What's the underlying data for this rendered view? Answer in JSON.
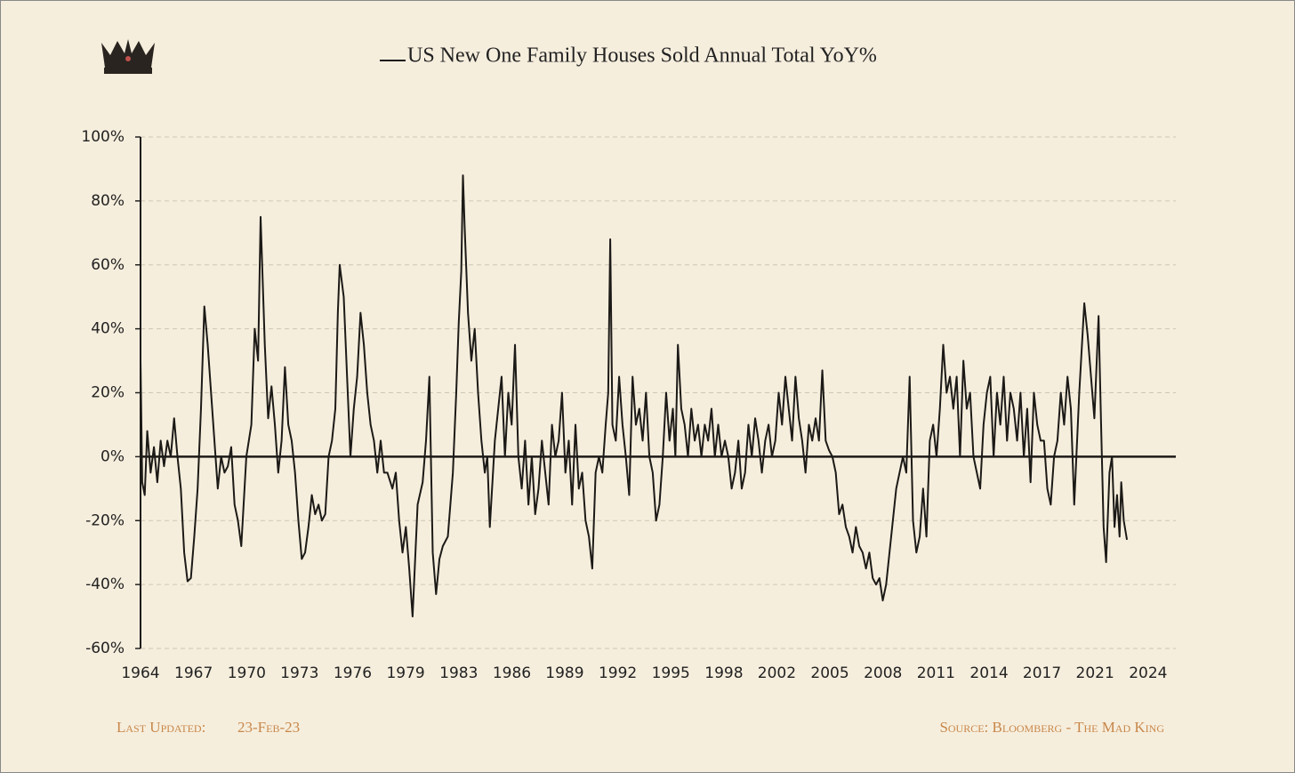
{
  "chart_data": {
    "type": "line",
    "footer_left_label": "Last Updated:",
    "footer_left_value": "23-Feb-23",
    "footer_right": "Source: Bloomberg - The Mad King",
    "xlim": [
      1964,
      2025.65
    ],
    "ylim": [
      -60,
      100
    ],
    "xticks": [
      {
        "value": 1964,
        "label": "1964"
      },
      {
        "value": 1967.16,
        "label": "1967"
      },
      {
        "value": 1970.32,
        "label": "1970"
      },
      {
        "value": 1973.47,
        "label": "1973"
      },
      {
        "value": 1976.63,
        "label": "1976"
      },
      {
        "value": 1979.79,
        "label": "1979"
      },
      {
        "value": 1982.95,
        "label": "1983"
      },
      {
        "value": 1986.11,
        "label": "1986"
      },
      {
        "value": 1989.26,
        "label": "1989"
      },
      {
        "value": 1992.42,
        "label": "1992"
      },
      {
        "value": 1995.58,
        "label": "1995"
      },
      {
        "value": 1998.74,
        "label": "1998"
      },
      {
        "value": 2001.89,
        "label": "2002"
      },
      {
        "value": 2005.05,
        "label": "2005"
      },
      {
        "value": 2008.21,
        "label": "2008"
      },
      {
        "value": 2011.37,
        "label": "2011"
      },
      {
        "value": 2014.53,
        "label": "2014"
      },
      {
        "value": 2017.68,
        "label": "2017"
      },
      {
        "value": 2020.84,
        "label": "2021"
      },
      {
        "value": 2024,
        "label": "2024"
      }
    ],
    "yticks": [
      {
        "value": -60,
        "label": "-60%"
      },
      {
        "value": -40,
        "label": "-40%"
      },
      {
        "value": -20,
        "label": "-20%"
      },
      {
        "value": 0,
        "label": "0%"
      },
      {
        "value": 20,
        "label": "20%"
      },
      {
        "value": 40,
        "label": "40%"
      },
      {
        "value": 60,
        "label": "60%"
      },
      {
        "value": 80,
        "label": "80%"
      },
      {
        "value": 100,
        "label": "100%"
      }
    ],
    "grid": true,
    "x": [
      1964.0,
      1964.1,
      1964.25,
      1964.4,
      1964.6,
      1964.8,
      1965.0,
      1965.2,
      1965.4,
      1965.6,
      1965.8,
      1966.0,
      1966.2,
      1966.4,
      1966.6,
      1966.8,
      1967.0,
      1967.2,
      1967.4,
      1967.6,
      1967.8,
      1968.0,
      1968.2,
      1968.4,
      1968.6,
      1968.8,
      1969.0,
      1969.2,
      1969.4,
      1969.6,
      1969.8,
      1970.0,
      1970.3,
      1970.6,
      1970.8,
      1971.0,
      1971.15,
      1971.4,
      1971.6,
      1971.8,
      1972.0,
      1972.2,
      1972.4,
      1972.6,
      1972.8,
      1973.0,
      1973.2,
      1973.4,
      1973.6,
      1973.8,
      1974.0,
      1974.2,
      1974.4,
      1974.6,
      1974.8,
      1975.0,
      1975.2,
      1975.4,
      1975.6,
      1975.75,
      1975.86,
      1976.1,
      1976.3,
      1976.5,
      1976.7,
      1976.9,
      1977.1,
      1977.3,
      1977.5,
      1977.7,
      1977.9,
      1978.1,
      1978.3,
      1978.5,
      1978.7,
      1979.0,
      1979.2,
      1979.4,
      1979.6,
      1979.8,
      1980.0,
      1980.2,
      1980.5,
      1980.8,
      1981.0,
      1981.2,
      1981.4,
      1981.6,
      1981.8,
      1982.0,
      1982.3,
      1982.6,
      1982.8,
      1982.95,
      1983.1,
      1983.2,
      1983.3,
      1983.5,
      1983.7,
      1983.9,
      1984.1,
      1984.3,
      1984.5,
      1984.65,
      1984.8,
      1985.1,
      1985.3,
      1985.5,
      1985.7,
      1985.9,
      1986.1,
      1986.3,
      1986.5,
      1986.7,
      1986.9,
      1987.1,
      1987.3,
      1987.5,
      1987.7,
      1987.9,
      1988.1,
      1988.3,
      1988.5,
      1988.7,
      1988.9,
      1989.1,
      1989.3,
      1989.5,
      1989.7,
      1989.9,
      1990.1,
      1990.3,
      1990.5,
      1990.7,
      1990.9,
      1991.1,
      1991.3,
      1991.5,
      1991.7,
      1991.85,
      1991.97,
      1992.1,
      1992.3,
      1992.5,
      1992.7,
      1992.9,
      1993.1,
      1993.3,
      1993.5,
      1993.7,
      1993.9,
      1994.1,
      1994.3,
      1994.5,
      1994.7,
      1994.9,
      1995.1,
      1995.3,
      1995.5,
      1995.7,
      1995.85,
      1996.0,
      1996.2,
      1996.4,
      1996.6,
      1996.8,
      1997.0,
      1997.2,
      1997.4,
      1997.6,
      1997.8,
      1998.0,
      1998.2,
      1998.4,
      1998.6,
      1998.8,
      1999.0,
      1999.2,
      1999.4,
      1999.6,
      1999.8,
      2000.0,
      2000.2,
      2000.4,
      2000.6,
      2000.8,
      2001.0,
      2001.2,
      2001.4,
      2001.6,
      2001.8,
      2002.0,
      2002.2,
      2002.4,
      2002.6,
      2002.8,
      2003.0,
      2003.2,
      2003.4,
      2003.6,
      2003.8,
      2004.0,
      2004.2,
      2004.4,
      2004.6,
      2004.8,
      2005.0,
      2005.2,
      2005.4,
      2005.6,
      2005.8,
      2006.0,
      2006.2,
      2006.4,
      2006.6,
      2006.8,
      2007.0,
      2007.2,
      2007.4,
      2007.6,
      2007.8,
      2008.0,
      2008.2,
      2008.4,
      2008.6,
      2008.8,
      2009.0,
      2009.2,
      2009.4,
      2009.6,
      2009.8,
      2010.0,
      2010.2,
      2010.4,
      2010.6,
      2010.8,
      2011.0,
      2011.2,
      2011.4,
      2011.6,
      2011.8,
      2012.0,
      2012.2,
      2012.4,
      2012.6,
      2012.8,
      2013.0,
      2013.2,
      2013.4,
      2013.6,
      2013.8,
      2014.0,
      2014.2,
      2014.4,
      2014.6,
      2014.8,
      2015.0,
      2015.2,
      2015.4,
      2015.6,
      2015.8,
      2016.0,
      2016.2,
      2016.4,
      2016.6,
      2016.8,
      2017.0,
      2017.2,
      2017.4,
      2017.6,
      2017.8,
      2018.0,
      2018.2,
      2018.4,
      2018.6,
      2018.8,
      2019.0,
      2019.2,
      2019.4,
      2019.6,
      2019.9,
      2020.2,
      2020.4,
      2020.6,
      2020.8,
      2021.05,
      2021.2,
      2021.35,
      2021.5,
      2021.7,
      2021.85,
      2022.0,
      2022.15,
      2022.3,
      2022.4,
      2022.55,
      2022.74
    ],
    "series": [
      {
        "name": "US New One Family Houses Sold Annual Total YoY%",
        "color": "#1c1a17",
        "values": [
          30,
          -8,
          -12,
          8,
          -5,
          3,
          -8,
          5,
          -3,
          5,
          0,
          12,
          0,
          -10,
          -30,
          -39,
          -38,
          -25,
          -10,
          15,
          47,
          35,
          20,
          5,
          -10,
          0,
          -5,
          -3,
          3,
          -15,
          -20,
          -28,
          0,
          10,
          40,
          30,
          75,
          35,
          12,
          22,
          10,
          -5,
          5,
          28,
          10,
          5,
          -5,
          -20,
          -32,
          -30,
          -22,
          -12,
          -18,
          -15,
          -20,
          -18,
          0,
          5,
          15,
          45,
          60,
          50,
          25,
          0,
          15,
          25,
          45,
          35,
          20,
          10,
          5,
          -5,
          5,
          -5,
          -5,
          -10,
          -5,
          -20,
          -30,
          -22,
          -35,
          -50,
          -15,
          -8,
          5,
          25,
          -30,
          -43,
          -32,
          -28,
          -25,
          -5,
          20,
          42,
          58,
          88,
          72,
          45,
          30,
          40,
          20,
          5,
          -5,
          0,
          -22,
          5,
          15,
          25,
          0,
          20,
          10,
          35,
          0,
          -10,
          5,
          -15,
          0,
          -18,
          -10,
          5,
          -5,
          -15,
          10,
          0,
          5,
          20,
          -5,
          5,
          -15,
          10,
          -10,
          -5,
          -20,
          -25,
          -35,
          -5,
          0,
          -5,
          10,
          20,
          68,
          10,
          5,
          25,
          10,
          0,
          -12,
          25,
          10,
          15,
          5,
          20,
          0,
          -5,
          -20,
          -15,
          0,
          20,
          5,
          15,
          0,
          35,
          15,
          10,
          0,
          15,
          5,
          10,
          0,
          10,
          5,
          15,
          0,
          10,
          0,
          5,
          0,
          -10,
          -5,
          5,
          -10,
          -5,
          10,
          0,
          12,
          5,
          -5,
          5,
          10,
          0,
          5,
          20,
          10,
          25,
          15,
          5,
          25,
          12,
          5,
          -5,
          10,
          5,
          12,
          5,
          27,
          5,
          2,
          0,
          -5,
          -18,
          -15,
          -22,
          -25,
          -30,
          -22,
          -28,
          -30,
          -35,
          -30,
          -38,
          -40,
          -38,
          -45,
          -40,
          -30,
          -20,
          -10,
          -5,
          0,
          -5,
          25,
          -20,
          -30,
          -25,
          -10,
          -25,
          5,
          10,
          0,
          15,
          35,
          20,
          25,
          15,
          25,
          0,
          30,
          15,
          20,
          0,
          -5,
          -10,
          10,
          20,
          25,
          0,
          20,
          10,
          25,
          5,
          20,
          15,
          5,
          20,
          0,
          15,
          -8,
          20,
          10,
          5,
          5,
          -10,
          -15,
          0,
          5,
          20,
          10,
          25,
          15,
          -15,
          20,
          48,
          38,
          25,
          12,
          44,
          10,
          -22,
          -33,
          -5,
          0,
          -22,
          -12,
          -25,
          -8,
          -20,
          -26
        ]
      }
    ]
  }
}
